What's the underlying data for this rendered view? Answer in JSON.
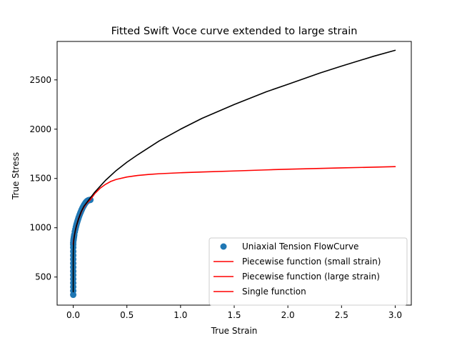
{
  "chart_data": {
    "type": "line",
    "title": "Fitted Swift Voce curve extended to large strain",
    "xlabel": "True Strain",
    "ylabel": "True Stress",
    "xlim": [
      -0.15,
      3.15
    ],
    "ylim": [
      215,
      2890
    ],
    "xticks": [
      0.0,
      0.5,
      1.0,
      1.5,
      2.0,
      2.5,
      3.0
    ],
    "xtick_labels": [
      "0.0",
      "0.5",
      "1.0",
      "1.5",
      "2.0",
      "2.5",
      "3.0"
    ],
    "yticks": [
      500,
      1000,
      1500,
      2000,
      2500
    ],
    "ytick_labels": [
      "500",
      "1000",
      "1500",
      "2000",
      "2500"
    ],
    "grid": false,
    "legend_position": "lower-right",
    "series": [
      {
        "name": "Uniaxial Tension FlowCurve",
        "kind": "scatter",
        "color": "#1f77b4",
        "x": [
          0.0,
          0.0,
          0.0,
          0.0,
          0.0,
          0.0,
          0.0,
          0.0,
          0.0,
          0.0,
          0.0,
          0.0,
          0.0,
          0.0,
          0.0,
          0.002,
          0.004,
          0.006,
          0.008,
          0.01,
          0.015,
          0.02,
          0.025,
          0.03,
          0.035,
          0.04,
          0.045,
          0.05,
          0.055,
          0.06,
          0.065,
          0.07,
          0.075,
          0.08,
          0.085,
          0.09,
          0.095,
          0.1,
          0.105,
          0.11,
          0.115,
          0.12,
          0.125,
          0.13,
          0.135,
          0.14,
          0.145,
          0.15,
          0.155,
          0.16
        ],
        "y": [
          320,
          360,
          400,
          440,
          480,
          520,
          560,
          600,
          640,
          680,
          720,
          760,
          800,
          830,
          850,
          870,
          885,
          900,
          915,
          930,
          960,
          985,
          1008,
          1030,
          1050,
          1068,
          1085,
          1102,
          1118,
          1133,
          1147,
          1160,
          1173,
          1185,
          1197,
          1208,
          1218,
          1228,
          1237,
          1245,
          1253,
          1260,
          1266,
          1271,
          1275,
          1278,
          1280,
          1281,
          1282,
          1283
        ]
      },
      {
        "name": "Piecewise function (small strain)",
        "kind": "line",
        "color": "#ff0000",
        "x": [
          0.0,
          0.005,
          0.01,
          0.02,
          0.03,
          0.04,
          0.05,
          0.06,
          0.08,
          0.1,
          0.12,
          0.14,
          0.16
        ],
        "y": [
          840,
          885,
          920,
          975,
          1020,
          1060,
          1095,
          1125,
          1175,
          1215,
          1245,
          1268,
          1285
        ]
      },
      {
        "name": "Piecewise function (large strain)",
        "kind": "line",
        "color": "#ff0000",
        "x": [
          0.16,
          0.2,
          0.25,
          0.3,
          0.35,
          0.4,
          0.5,
          0.6,
          0.7,
          0.8,
          1.0,
          1.2,
          1.5,
          1.8,
          2.0,
          2.5,
          3.0
        ],
        "y": [
          1285,
          1345,
          1400,
          1440,
          1470,
          1490,
          1515,
          1530,
          1540,
          1548,
          1558,
          1566,
          1576,
          1587,
          1594,
          1607,
          1620
        ]
      },
      {
        "name": "Single function",
        "kind": "line",
        "color": "#ff0000",
        "x": [
          0.0,
          0.005,
          0.01,
          0.02,
          0.03,
          0.05,
          0.08,
          0.1,
          0.13,
          0.16
        ],
        "y": [
          830,
          880,
          915,
          970,
          1015,
          1090,
          1170,
          1210,
          1255,
          1285
        ]
      },
      {
        "name": "",
        "kind": "line",
        "color": "#000000",
        "x": [
          0.0,
          0.0,
          0.0,
          0.001,
          0.003,
          0.005,
          0.01,
          0.02,
          0.03,
          0.05,
          0.075,
          0.1,
          0.15,
          0.2,
          0.3,
          0.4,
          0.5,
          0.6,
          0.8,
          1.0,
          1.2,
          1.5,
          1.8,
          2.0,
          2.3,
          2.5,
          2.8,
          3.0
        ],
        "y": [
          350,
          550,
          700,
          780,
          840,
          870,
          915,
          975,
          1020,
          1090,
          1165,
          1218,
          1290,
          1360,
          1480,
          1580,
          1665,
          1740,
          1880,
          2000,
          2110,
          2250,
          2380,
          2455,
          2570,
          2640,
          2740,
          2800
        ]
      }
    ]
  }
}
